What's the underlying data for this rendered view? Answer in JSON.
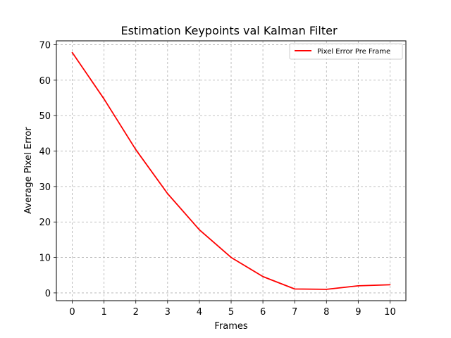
{
  "chart_data": {
    "type": "line",
    "title": "Estimation Keypoints val Kalman Filter",
    "xlabel": "Frames",
    "ylabel": "Average Pixel Error",
    "x": [
      0,
      1,
      2,
      3,
      4,
      5,
      6,
      7,
      8,
      9,
      10
    ],
    "series": [
      {
        "name": "Pixel Error Pre Frame",
        "color": "#ff0000",
        "values": [
          67.8,
          54.7,
          40.4,
          28.0,
          17.8,
          10.0,
          4.6,
          1.1,
          1.0,
          2.0,
          2.3
        ]
      }
    ],
    "xticks": [
      "0",
      "1",
      "2",
      "3",
      "4",
      "5",
      "6",
      "7",
      "8",
      "9",
      "10"
    ],
    "yticks": [
      "0",
      "10",
      "20",
      "30",
      "40",
      "50",
      "60",
      "70"
    ],
    "xlim": [
      -0.5,
      10.5
    ],
    "ylim": [
      -2.2,
      71.1
    ],
    "grid": true,
    "grid_color": "#b0b0b0",
    "legend_position": "top-right"
  }
}
